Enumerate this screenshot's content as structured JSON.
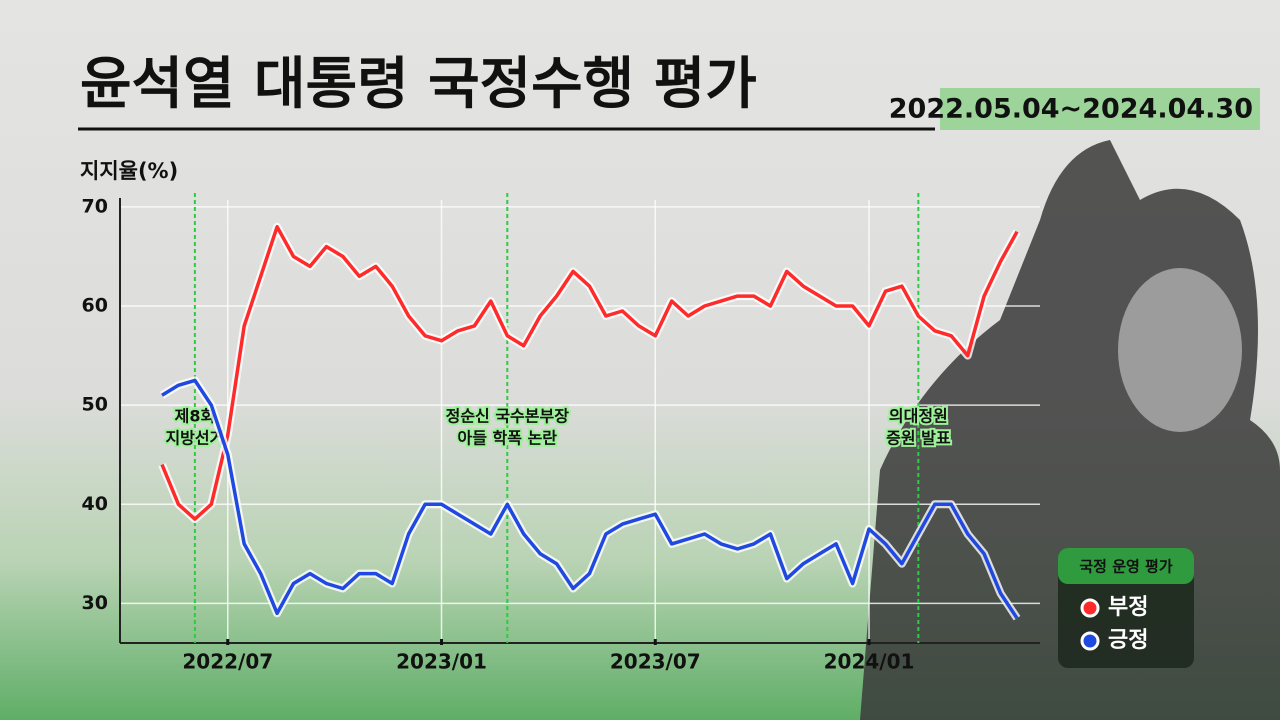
{
  "chart_data": {
    "type": "line",
    "title": "윤석열 대통령 국정수행 평가",
    "subtitle": "2022.05.04~2024.04.30",
    "y_label": "지지율(%)",
    "categories": [
      null,
      null,
      null,
      null,
      "2022/07",
      null,
      null,
      null,
      null,
      null,
      null,
      null,
      null,
      null,
      null,
      null,
      null,
      "2023/01",
      null,
      null,
      null,
      null,
      null,
      null,
      null,
      null,
      null,
      null,
      null,
      null,
      "2023/07",
      null,
      null,
      null,
      null,
      null,
      null,
      null,
      null,
      null,
      null,
      null,
      null,
      "2024/01",
      null,
      null,
      null,
      null,
      null,
      null,
      null,
      null,
      null
    ],
    "series": [
      {
        "name": "부정",
        "color": "#ff2a2a",
        "values": [
          44,
          40,
          38.5,
          40,
          47,
          58,
          63,
          68,
          65,
          64,
          66,
          65,
          63,
          64,
          62,
          59,
          57,
          56.5,
          57.5,
          58,
          60.5,
          57,
          56,
          59,
          61,
          63.5,
          62,
          59,
          59.5,
          58,
          57,
          60.5,
          59,
          60,
          60.5,
          61,
          61,
          60,
          63.5,
          62,
          61,
          60,
          60,
          58,
          61.5,
          62,
          59,
          57.5,
          57,
          55,
          61,
          64.5,
          67.5
        ]
      },
      {
        "name": "긍정",
        "color": "#1f49e0",
        "values": [
          51,
          52,
          52.5,
          50,
          45,
          36,
          33,
          29,
          32,
          33,
          32,
          31.5,
          33,
          33,
          32,
          37,
          40,
          40,
          39,
          38,
          37,
          40,
          37,
          35,
          34,
          31.5,
          33,
          37,
          38,
          38.5,
          39,
          36,
          36.5,
          37,
          36,
          35.5,
          36,
          37,
          32.5,
          34,
          35,
          36,
          32,
          37.5,
          36,
          34,
          37,
          40,
          40,
          37,
          35,
          31,
          28.5
        ]
      }
    ],
    "ylim": [
      26,
      70.7
    ],
    "yticks": [
      30,
      40,
      50,
      60,
      70
    ],
    "grid": true,
    "annotations": [
      [
        "제8회",
        "지방선거"
      ],
      [
        "정순신 국수본부장",
        "아들 학폭 논란"
      ],
      [
        "의대정원",
        "증원 발표"
      ]
    ],
    "legend_title": "국정 운영 평가",
    "legend_position": "lower right"
  }
}
